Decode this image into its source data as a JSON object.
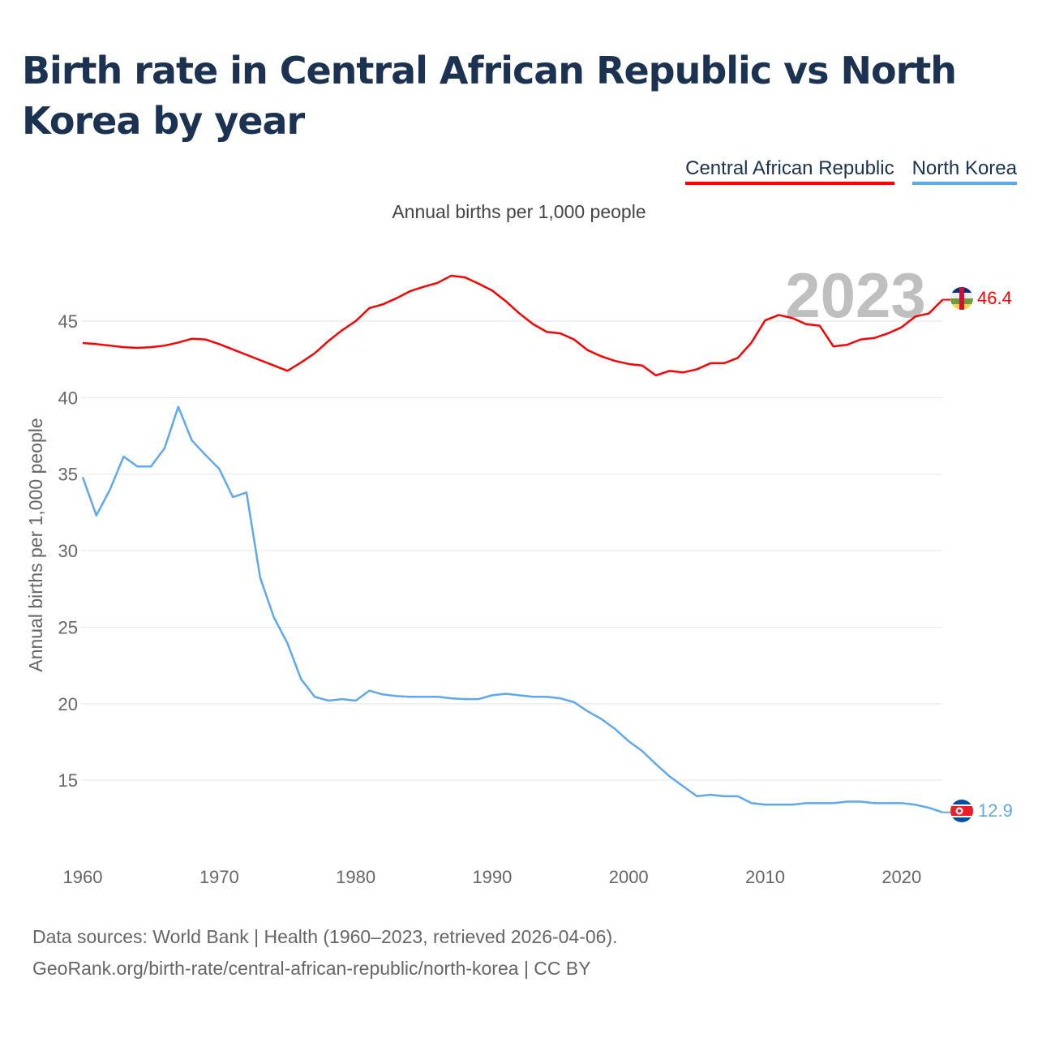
{
  "title": "Birth rate in Central African Republic vs North Korea by year",
  "subtitle": "Annual births per 1,000 people",
  "year_badge": "2023",
  "footer": {
    "line1": "Data sources: World Bank | Health (1960–2023, retrieved 2026-04-06).",
    "line2": "GeoRank.org/birth-rate/central-african-republic/north-korea | CC BY"
  },
  "chart_data": {
    "type": "line",
    "title": "Birth rate in Central African Republic vs North Korea by year",
    "xlabel": "",
    "ylabel": "Annual births per 1,000 people",
    "xlim": [
      1960,
      2023
    ],
    "x_ticks": [
      "1960",
      "1970",
      "1980",
      "1990",
      "2000",
      "2010",
      "2020"
    ],
    "y_ticks": [
      "15",
      "20",
      "25",
      "30",
      "35",
      "40",
      "45"
    ],
    "legend_placement": "top-right",
    "grid": true,
    "series": [
      {
        "name": "Central African Republic",
        "color": "#ff0000",
        "end_label": "46.4",
        "flag": "central-african-republic-flag",
        "values": [
          43.57,
          43.5,
          43.4,
          43.3,
          43.25,
          43.3,
          43.4,
          43.6,
          43.85,
          43.8,
          43.5,
          43.15,
          42.8,
          42.45,
          42.1,
          41.75,
          42.3,
          42.9,
          43.7,
          44.4,
          45.0,
          45.85,
          46.1,
          46.5,
          46.96,
          47.25,
          47.5,
          47.97,
          47.86,
          47.45,
          47.0,
          46.3,
          45.5,
          44.8,
          44.3,
          44.2,
          43.8,
          43.1,
          42.7,
          42.4,
          42.2,
          42.1,
          41.45,
          41.75,
          41.65,
          41.85,
          42.25,
          42.25,
          42.6,
          43.6,
          45.05,
          45.4,
          45.2,
          44.8,
          44.7,
          43.35,
          43.45,
          43.8,
          43.9,
          44.2,
          44.6,
          45.3,
          45.5,
          46.4
        ]
      },
      {
        "name": "North Korea",
        "color": "#5ea8ee",
        "end_label": "12.9",
        "flag": "north-korea-flag",
        "values": [
          34.8,
          32.3,
          34.0,
          36.15,
          35.5,
          35.5,
          36.7,
          39.4,
          37.2,
          36.25,
          35.35,
          33.5,
          33.8,
          28.25,
          25.65,
          23.95,
          21.6,
          20.45,
          20.2,
          20.3,
          20.2,
          20.85,
          20.6,
          20.5,
          20.45,
          20.45,
          20.45,
          20.35,
          20.3,
          20.3,
          20.55,
          20.65,
          20.55,
          20.45,
          20.45,
          20.35,
          20.1,
          19.5,
          19.0,
          18.35,
          17.55,
          16.9,
          16.05,
          15.25,
          14.6,
          13.95,
          14.05,
          13.95,
          13.95,
          13.5,
          13.4,
          13.4,
          13.4,
          13.5,
          13.5,
          13.5,
          13.6,
          13.6,
          13.5,
          13.5,
          13.5,
          13.4,
          13.2,
          12.9
        ]
      }
    ]
  }
}
